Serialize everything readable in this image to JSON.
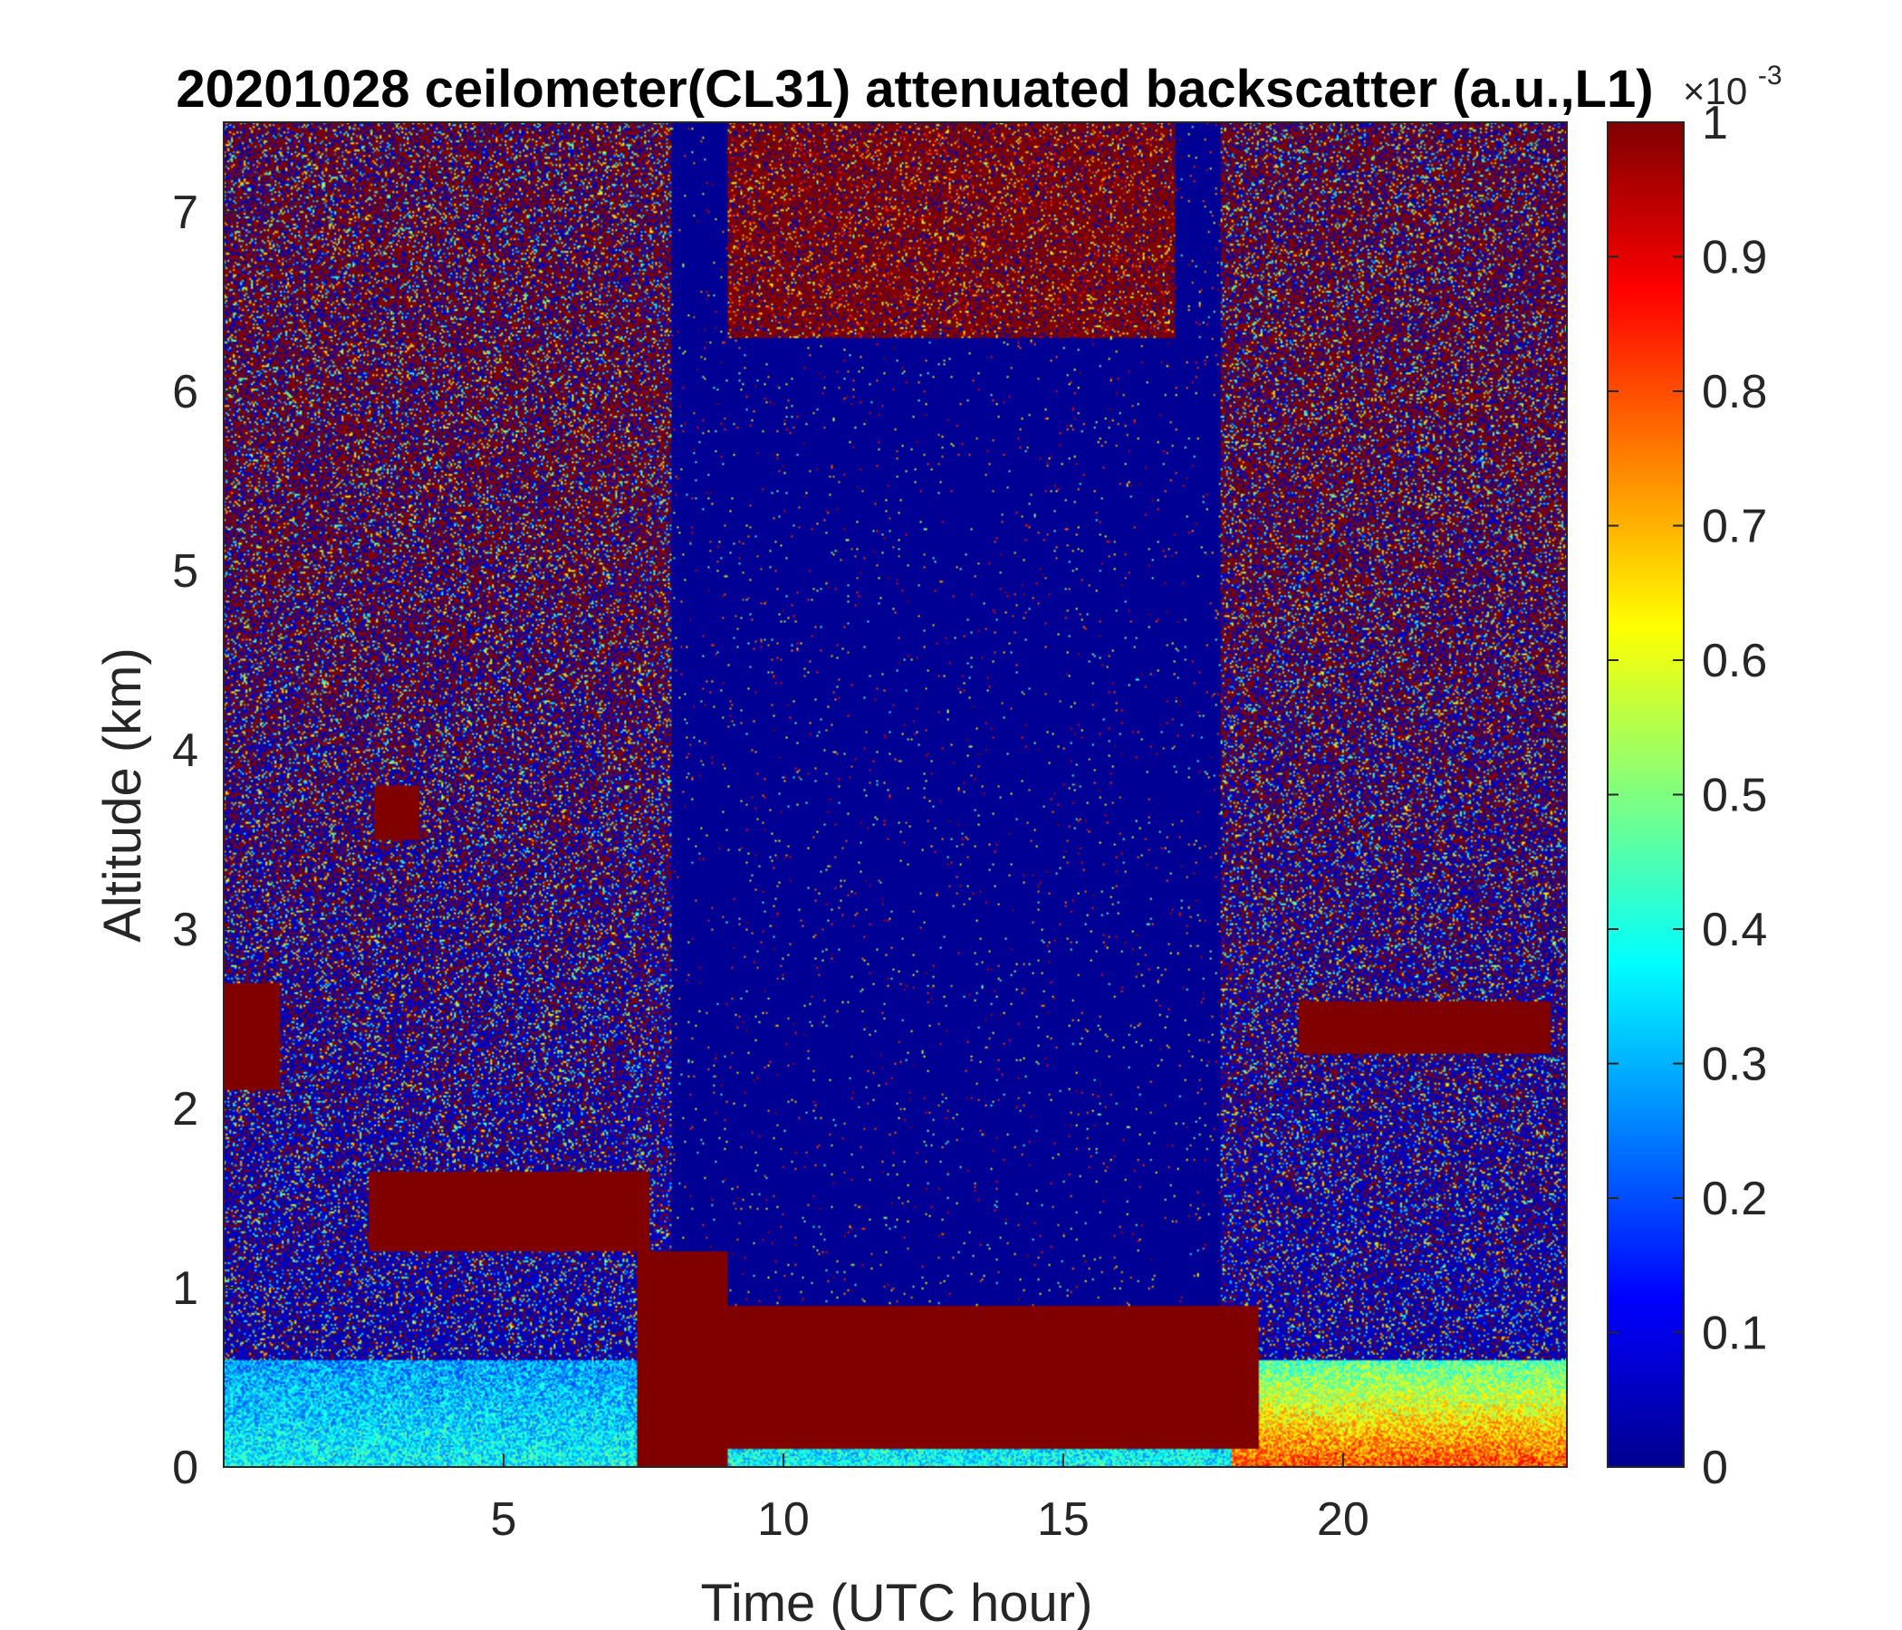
{
  "chart_data": {
    "type": "heatmap",
    "title": "20201028 ceilometer(CL31) attenuated backscatter (a.u.,L1)",
    "xlabel": "Time (UTC hour)",
    "ylabel": "Altitude (km)",
    "xlim": [
      0,
      24
    ],
    "ylim": [
      0,
      7.5
    ],
    "xticks": [
      5,
      10,
      15,
      20
    ],
    "xtick_labels": [
      "5",
      "10",
      "15",
      "20"
    ],
    "yticks": [
      0,
      1,
      2,
      3,
      4,
      5,
      6,
      7
    ],
    "ytick_labels": [
      "0",
      "1",
      "2",
      "3",
      "4",
      "5",
      "6",
      "7"
    ],
    "colorbar": {
      "colormap": "jet",
      "range": [
        0,
        1
      ],
      "multiplier": "×10",
      "multiplier_exponent": "-3",
      "ticks": [
        0,
        0.1,
        0.2,
        0.3,
        0.4,
        0.5,
        0.6,
        0.7,
        0.8,
        0.9,
        1
      ],
      "tick_labels": [
        "0",
        "0.1",
        "0.2",
        "0.3",
        "0.4",
        "0.5",
        "0.6",
        "0.7",
        "0.8",
        "0.9",
        "1"
      ]
    },
    "features": {
      "clear_sky_window_hours": [
        8,
        17.8
      ],
      "daytime_saturation_hours": [
        9,
        17
      ],
      "cloud_layers": [
        {
          "t": [
            0,
            1.0
          ],
          "z": [
            2.1,
            2.7
          ]
        },
        {
          "t": [
            2.7,
            3.5
          ],
          "z": [
            3.5,
            3.8
          ]
        },
        {
          "t": [
            2.6,
            7.6
          ],
          "z": [
            1.2,
            1.65
          ]
        },
        {
          "t": [
            7.4,
            9.0
          ],
          "z": [
            0,
            1.2
          ]
        },
        {
          "t": [
            9.0,
            18.5
          ],
          "z": [
            0.1,
            0.9
          ]
        },
        {
          "t": [
            19.2,
            23.7
          ],
          "z": [
            2.3,
            2.6
          ]
        }
      ],
      "aerosol_layer_km": [
        0,
        0.6
      ]
    }
  }
}
